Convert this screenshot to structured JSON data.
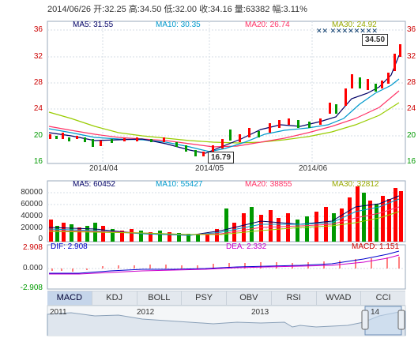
{
  "header": {
    "date": "2014/06/26",
    "open_label": "开:",
    "open": "32.25",
    "high_label": "高:",
    "high": "34.50",
    "low_label": "低:",
    "low": "32.00",
    "close_label": "收:",
    "close": "34.16",
    "volume_label": "量:",
    "volume": "63382",
    "change_label": "幅:",
    "change": "3.11%"
  },
  "price_legend": {
    "ma5": "MA5: 31.55",
    "ma10": "MA10: 30.35",
    "ma20": "MA20: 26.74",
    "ma30": "MA30: 24.92"
  },
  "price_axis": [
    "36",
    "32",
    "28",
    "24",
    "20",
    "16"
  ],
  "dates": [
    "2014/04",
    "2014/05",
    "2014/06"
  ],
  "annotations": {
    "high": "34.50",
    "low": "16.79"
  },
  "volume_legend": {
    "ma5": "MA5: 60452",
    "ma10": "MA10: 55427",
    "ma20": "MA20: 38855",
    "ma30": "MA30: 32812"
  },
  "volume_axis": [
    "80000",
    "60000",
    "40000",
    "20000",
    "0"
  ],
  "macd_legend": {
    "dif": "DIF: 2.908",
    "dea": "DEA: 2.332",
    "macd": "MACD: 1.151"
  },
  "macd_axis": [
    "2.908",
    "0.000",
    "-2.908"
  ],
  "tabs": [
    "MACD",
    "KDJ",
    "BOLL",
    "PSY",
    "OBV",
    "RSI",
    "WVAD",
    "CCI"
  ],
  "timeline": [
    "2011",
    "2012",
    "2013",
    "14"
  ],
  "colors": {
    "up": "#ff0000",
    "down": "#009900",
    "ma5": "#000066",
    "ma10": "#0099cc",
    "ma20": "#ff3366",
    "ma30": "#99cc00",
    "grid": "#cfd8e3"
  },
  "chart_data": {
    "type": "candlestick",
    "ylim": [
      16,
      36
    ],
    "last_bar": {
      "open": 32.25,
      "high": 34.5,
      "low": 32.0,
      "close": 34.16,
      "volume": 63382
    }
  }
}
